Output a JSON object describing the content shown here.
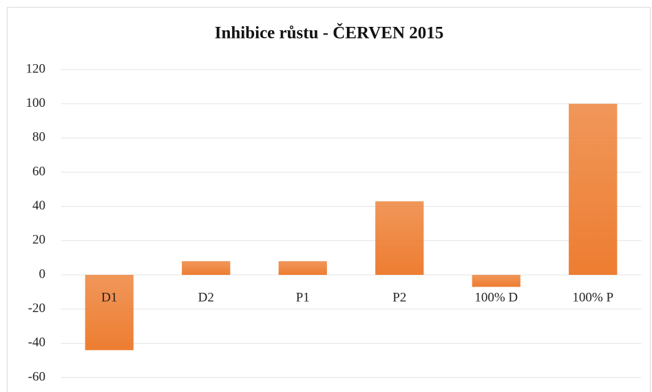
{
  "chart_data": {
    "type": "bar",
    "title": "Inhibice růstu - ČERVEN 2015",
    "categories": [
      "D1",
      "D2",
      "P1",
      "P2",
      "100% D",
      "100% P"
    ],
    "values": [
      -44,
      8,
      8,
      43,
      -7,
      100
    ],
    "color": "#ed7d31",
    "ylim": [
      -60,
      120
    ],
    "yticks": [
      -60,
      -40,
      -20,
      0,
      20,
      40,
      60,
      80,
      100,
      120
    ],
    "grid": true
  }
}
